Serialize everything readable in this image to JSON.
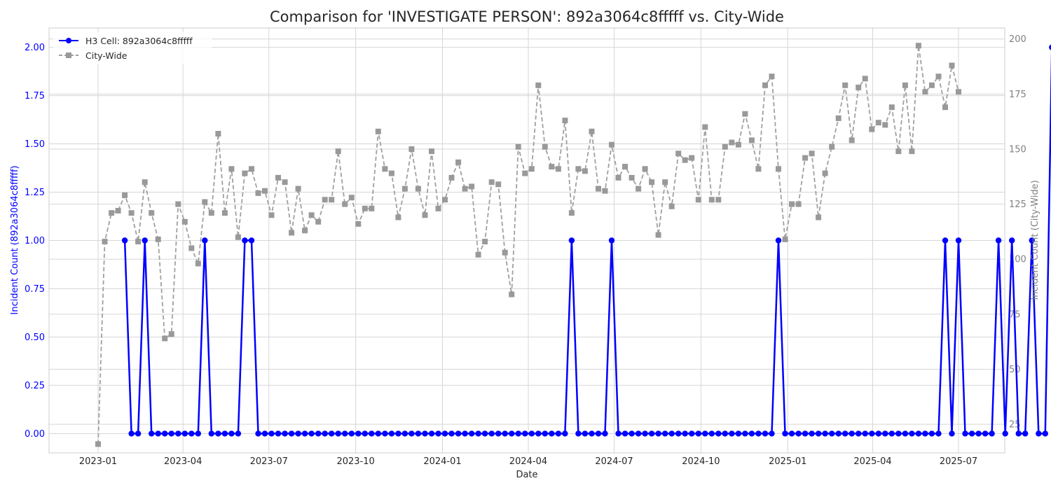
{
  "chart_data": {
    "type": "line",
    "title": "Comparison for 'INVESTIGATE PERSON': 892a3064c8fffff vs. City-Wide",
    "xlabel": "Date",
    "ylabel_left": "Incident Count (892a3064c8fffff)",
    "ylabel_right": "Incident Count (City-Wide)",
    "x_start": "2023-01-01",
    "x_end": "2025-07-01",
    "xlim": [
      "2022-11-10",
      "2025-08-19"
    ],
    "x_ticks": [
      "2023-01",
      "2023-04",
      "2023-07",
      "2023-10",
      "2024-01",
      "2024-04",
      "2024-07",
      "2024-10",
      "2025-01",
      "2025-04",
      "2025-07"
    ],
    "ylim_left": [
      -0.1,
      2.1
    ],
    "y_ticks_left": [
      "0.00",
      "0.25",
      "0.50",
      "0.75",
      "1.00",
      "1.25",
      "1.50",
      "1.75",
      "2.00"
    ],
    "ylim_right": [
      12,
      205
    ],
    "y_ticks_right": [
      "25",
      "50",
      "75",
      "100",
      "125",
      "150",
      "175",
      "200"
    ],
    "grid": true,
    "legend_position": "top-left",
    "series": [
      {
        "name": "H3 Cell: 892a3064c8fffff",
        "axis": "left",
        "color": "#0000ff",
        "style": "solid-circle",
        "start_index": 4,
        "values": [
          1,
          0,
          0,
          1,
          0,
          0,
          0,
          0,
          0,
          0,
          0,
          0,
          1,
          0,
          0,
          0,
          0,
          0,
          1,
          1,
          0,
          0,
          0,
          0,
          0,
          0,
          0,
          0,
          0,
          0,
          0,
          0,
          0,
          0,
          0,
          0,
          0,
          0,
          0,
          0,
          0,
          0,
          0,
          0,
          0,
          0,
          0,
          0,
          0,
          0,
          0,
          0,
          0,
          0,
          0,
          0,
          0,
          0,
          0,
          0,
          0,
          0,
          0,
          0,
          0,
          0,
          0,
          1,
          0,
          0,
          0,
          0,
          0,
          1,
          0,
          0,
          0,
          0,
          0,
          0,
          0,
          0,
          0,
          0,
          0,
          0,
          0,
          0,
          0,
          0,
          0,
          0,
          0,
          0,
          0,
          0,
          0,
          0,
          1,
          0,
          0,
          0,
          0,
          0,
          0,
          0,
          0,
          0,
          0,
          0,
          0,
          0,
          0,
          0,
          0,
          0,
          0,
          0,
          0,
          0,
          0,
          0,
          0,
          1,
          0,
          1,
          0,
          0,
          0,
          0,
          0,
          1,
          0,
          1,
          0,
          0,
          1,
          0,
          0,
          2
        ]
      },
      {
        "name": "City-Wide",
        "axis": "right",
        "color": "#a0a0a0",
        "style": "dashed-square",
        "start_index": 0,
        "values": [
          16,
          108,
          121,
          122,
          129,
          121,
          108,
          135,
          121,
          109,
          64,
          66,
          125,
          117,
          105,
          98,
          126,
          121,
          157,
          121,
          141,
          110,
          139,
          141,
          130,
          131,
          120,
          137,
          135,
          112,
          132,
          113,
          120,
          117,
          127,
          127,
          149,
          125,
          128,
          116,
          123,
          123,
          158,
          141,
          139,
          119,
          132,
          150,
          132,
          120,
          149,
          123,
          127,
          137,
          144,
          132,
          133,
          102,
          108,
          135,
          134,
          103,
          84,
          151,
          139,
          141,
          179,
          151,
          142,
          141,
          163,
          121,
          141,
          140,
          158,
          132,
          131,
          152,
          137,
          142,
          137,
          132,
          141,
          135,
          111,
          135,
          124,
          148,
          145,
          146,
          127,
          160,
          127,
          127,
          151,
          153,
          152,
          166,
          154,
          141,
          179,
          183,
          141,
          109,
          125,
          125,
          146,
          148,
          119,
          139,
          151,
          164,
          179,
          154,
          178,
          182,
          159,
          162,
          161,
          169,
          149,
          179,
          149,
          197,
          176,
          179,
          183,
          169,
          188,
          176
        ]
      }
    ]
  }
}
